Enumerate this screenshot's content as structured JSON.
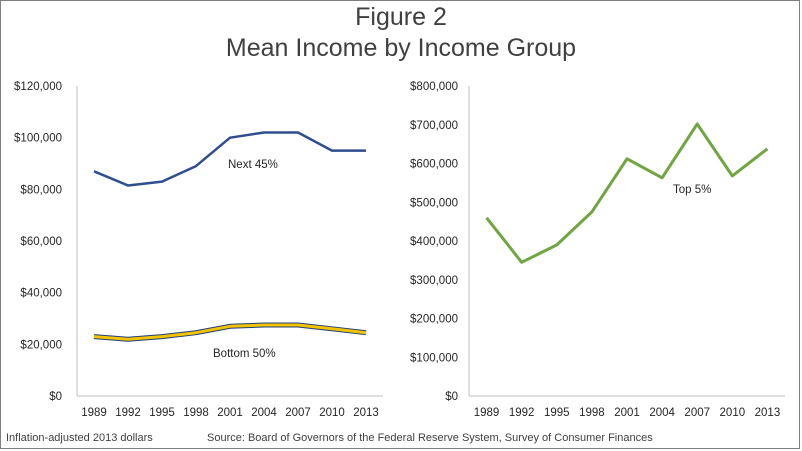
{
  "figure": {
    "title": "Figure 2",
    "subtitle": "Mean Income by Income Group",
    "footnote_left": "Inflation-adjusted 2013 dollars",
    "footnote_right": "Source: Board of Governors of the Federal Reserve System, Survey of Consumer Finances"
  },
  "colors": {
    "next45": "#2f4e8f",
    "bottom50_outer": "#1f3f7a",
    "bottom50_inner": "#f2c300",
    "top5": "#70a542"
  },
  "chart_data": [
    {
      "type": "line",
      "categories": [
        "1989",
        "1992",
        "1995",
        "1998",
        "2001",
        "2004",
        "2007",
        "2010",
        "2013"
      ],
      "ylim": [
        0,
        120000
      ],
      "yticks": [
        0,
        20000,
        40000,
        60000,
        80000,
        100000,
        120000
      ],
      "ytick_labels": [
        "$0",
        "$20,000",
        "$40,000",
        "$60,000",
        "$80,000",
        "$100,000",
        "$120,000"
      ],
      "grid": false,
      "series": [
        {
          "name": "Next 45%",
          "values": [
            87000,
            81500,
            83000,
            89000,
            100000,
            102000,
            102000,
            95000,
            95000
          ]
        },
        {
          "name": "Bottom 50%",
          "values": [
            23000,
            22000,
            23000,
            24500,
            27000,
            27500,
            27500,
            26000,
            24500
          ]
        }
      ]
    },
    {
      "type": "line",
      "categories": [
        "1989",
        "1992",
        "1995",
        "1998",
        "2001",
        "2004",
        "2007",
        "2010",
        "2013"
      ],
      "ylim": [
        0,
        800000
      ],
      "yticks": [
        0,
        100000,
        200000,
        300000,
        400000,
        500000,
        600000,
        700000,
        800000
      ],
      "ytick_labels": [
        "$0",
        "$100,000",
        "$200,000",
        "$300,000",
        "$400,000",
        "$500,000",
        "$600,000",
        "$700,000",
        "$800,000"
      ],
      "grid": false,
      "series": [
        {
          "name": "Top 5%",
          "values": [
            460000,
            345000,
            390000,
            475000,
            612000,
            563000,
            702000,
            568000,
            638000
          ]
        }
      ]
    }
  ]
}
